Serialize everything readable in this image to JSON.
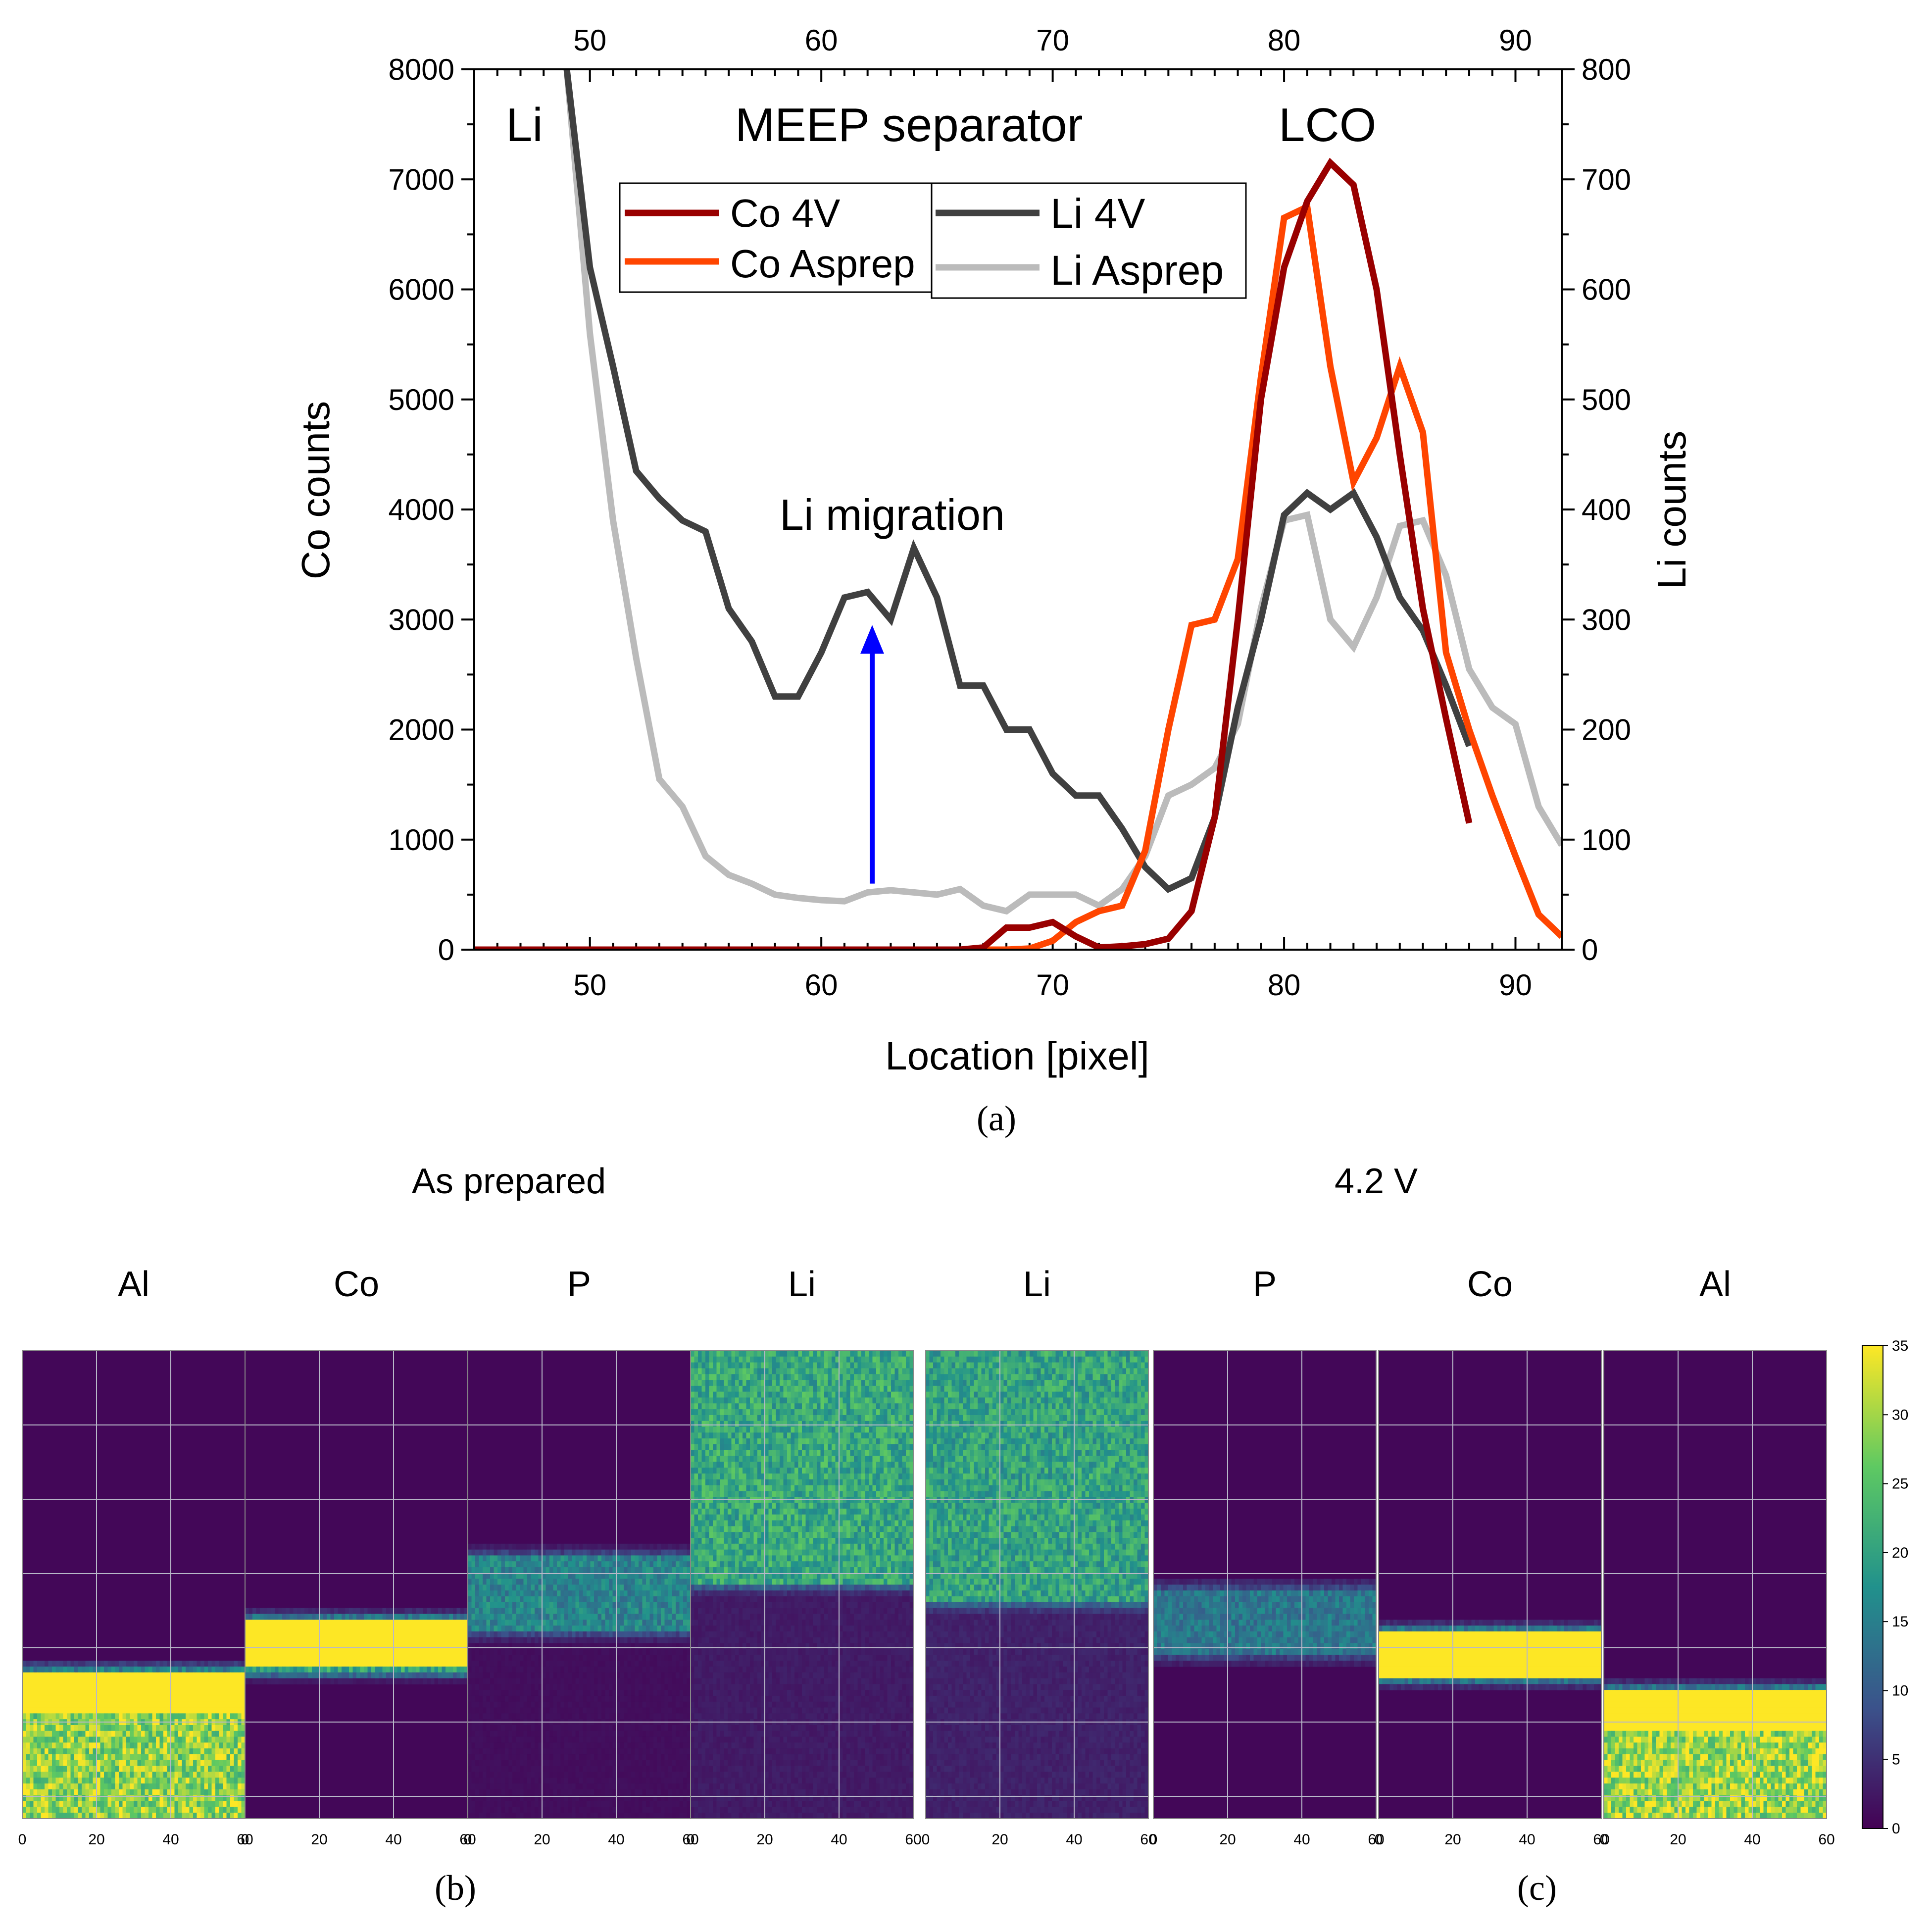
{
  "chart_data": [
    {
      "panel": "a",
      "type": "line",
      "xlabel": "Location [pixel]",
      "ylabel_left": "Co counts",
      "ylabel_right": "Li counts",
      "xlim": [
        45,
        92
      ],
      "ylim_left": [
        0,
        8000
      ],
      "ylim_right": [
        0,
        800
      ],
      "x_ticks": [
        "50",
        "60",
        "70",
        "80",
        "90"
      ],
      "x_ticks_top": [
        "50",
        "60",
        "70",
        "80",
        "90"
      ],
      "y_ticks_left": [
        "0",
        "1000",
        "2000",
        "3000",
        "4000",
        "5000",
        "6000",
        "7000",
        "8000"
      ],
      "y_ticks_right": [
        "0",
        "100",
        "200",
        "300",
        "400",
        "500",
        "600",
        "700",
        "800"
      ],
      "annotations": {
        "li": "Li",
        "separator": "MEEP separator",
        "lco": "LCO",
        "migration": "Li migration"
      },
      "arrow": {
        "x": 62.2,
        "y_from": 600,
        "y_to": 2950,
        "color": "#0000ff"
      },
      "series": [
        {
          "name": "Co 4V",
          "axis": "left",
          "color": "#990000",
          "x": [
            45,
            50,
            55,
            60,
            65,
            66,
            67,
            68,
            69,
            70,
            71,
            72,
            73,
            74,
            75,
            76,
            77,
            78,
            79,
            80,
            81,
            82,
            83,
            84,
            85,
            86,
            87,
            88
          ],
          "values": [
            0,
            0,
            0,
            0,
            0,
            0,
            20,
            200,
            200,
            250,
            120,
            20,
            30,
            50,
            100,
            350,
            1200,
            3000,
            5000,
            6200,
            6800,
            7150,
            6950,
            6000,
            4500,
            3100,
            2100,
            1150
          ]
        },
        {
          "name": "Co Asprep",
          "axis": "left",
          "color": "#ff4500",
          "x": [
            45,
            50,
            55,
            60,
            65,
            68,
            69,
            70,
            71,
            72,
            73,
            74,
            75,
            76,
            77,
            78,
            79,
            80,
            81,
            82,
            83,
            84,
            85,
            86,
            87,
            88,
            89,
            90,
            91,
            92
          ],
          "values": [
            0,
            0,
            0,
            0,
            0,
            0,
            10,
            80,
            250,
            350,
            400,
            900,
            2000,
            2950,
            3000,
            3550,
            5200,
            6650,
            6750,
            5300,
            4250,
            4650,
            5300,
            4700,
            2700,
            2000,
            1400,
            850,
            320,
            120
          ]
        },
        {
          "name": "Li 4V",
          "axis": "right",
          "color": "#404040",
          "x": [
            49,
            50,
            51,
            52,
            53,
            54,
            55,
            56,
            57,
            58,
            59,
            60,
            61,
            62,
            63,
            64,
            65,
            66,
            67,
            68,
            69,
            70,
            71,
            72,
            73,
            74,
            75,
            76,
            77,
            78,
            79,
            80,
            81,
            82,
            83,
            84,
            85,
            86,
            87,
            88
          ],
          "values": [
            800,
            620,
            530,
            435,
            410,
            390,
            380,
            310,
            280,
            230,
            230,
            270,
            320,
            325,
            300,
            365,
            320,
            240,
            240,
            200,
            200,
            160,
            140,
            140,
            110,
            75,
            55,
            65,
            120,
            220,
            300,
            395,
            415,
            400,
            415,
            375,
            320,
            290,
            240,
            185
          ]
        },
        {
          "name": "Li Asprep",
          "axis": "right",
          "color": "#bbbbbb",
          "x": [
            49,
            50,
            51,
            52,
            53,
            54,
            55,
            56,
            57,
            58,
            59,
            60,
            61,
            62,
            63,
            64,
            65,
            66,
            67,
            68,
            69,
            70,
            71,
            72,
            73,
            74,
            75,
            76,
            77,
            78,
            79,
            80,
            81,
            82,
            83,
            84,
            85,
            86,
            87,
            88,
            89,
            90,
            91,
            92
          ],
          "values": [
            800,
            560,
            390,
            265,
            155,
            130,
            85,
            68,
            60,
            50,
            47,
            45,
            44,
            52,
            54,
            52,
            50,
            55,
            40,
            35,
            50,
            50,
            50,
            40,
            55,
            85,
            140,
            150,
            165,
            205,
            310,
            390,
            395,
            300,
            275,
            320,
            385,
            390,
            340,
            255,
            220,
            205,
            130,
            95
          ]
        }
      ]
    },
    {
      "panel": "b/c",
      "type": "heatmap",
      "group_titles": [
        "As prepared",
        "4.2 V"
      ],
      "panel_titles": [
        "Al",
        "Co",
        "P",
        "Li",
        "Li",
        "P",
        "Co",
        "Al"
      ],
      "x_ticks": [
        "0",
        "20",
        "40",
        "60"
      ],
      "colorbar": {
        "min": 0,
        "max": 35,
        "ticks": [
          "0",
          "5",
          "10",
          "15",
          "20",
          "25",
          "30",
          "35"
        ]
      },
      "colormap": [
        "#440154",
        "#3b528b",
        "#21918c",
        "#5ec962",
        "#fde725"
      ],
      "panels": [
        {
          "element": "Al",
          "condition": "As prepared",
          "band_center": 0.73,
          "band_halfwidth": 0.04,
          "below_level": 0.82,
          "above_level": 0.02,
          "band_level": 1.0
        },
        {
          "element": "Co",
          "condition": "As prepared",
          "band_center": 0.63,
          "band_halfwidth": 0.05,
          "below_level": 0.02,
          "above_level": 0.02,
          "band_level": 1.0
        },
        {
          "element": "P",
          "condition": "As prepared",
          "band_center": 0.52,
          "band_halfwidth": 0.08,
          "below_level": 0.04,
          "above_level": 0.03,
          "band_level": 0.45
        },
        {
          "element": "Li",
          "condition": "As prepared",
          "band_center": 0.25,
          "band_halfwidth": 0.25,
          "below_level": 0.08,
          "above_level": 0.55,
          "band_level": 0.6
        },
        {
          "element": "Li",
          "condition": "4.2 V",
          "band_center": 0.27,
          "band_halfwidth": 0.27,
          "below_level": 0.1,
          "above_level": 0.55,
          "band_level": 0.58
        },
        {
          "element": "P",
          "condition": "4.2 V",
          "band_center": 0.58,
          "band_halfwidth": 0.07,
          "below_level": 0.03,
          "above_level": 0.03,
          "band_level": 0.4
        },
        {
          "element": "Co",
          "condition": "4.2 V",
          "band_center": 0.65,
          "band_halfwidth": 0.045,
          "below_level": 0.02,
          "above_level": 0.02,
          "band_level": 1.0
        },
        {
          "element": "Al",
          "condition": "4.2 V",
          "band_center": 0.77,
          "band_halfwidth": 0.04,
          "below_level": 0.85,
          "above_level": 0.02,
          "band_level": 1.0
        }
      ]
    }
  ],
  "labels": {
    "a": "(a)",
    "b": "(b)",
    "c": "(c)"
  }
}
